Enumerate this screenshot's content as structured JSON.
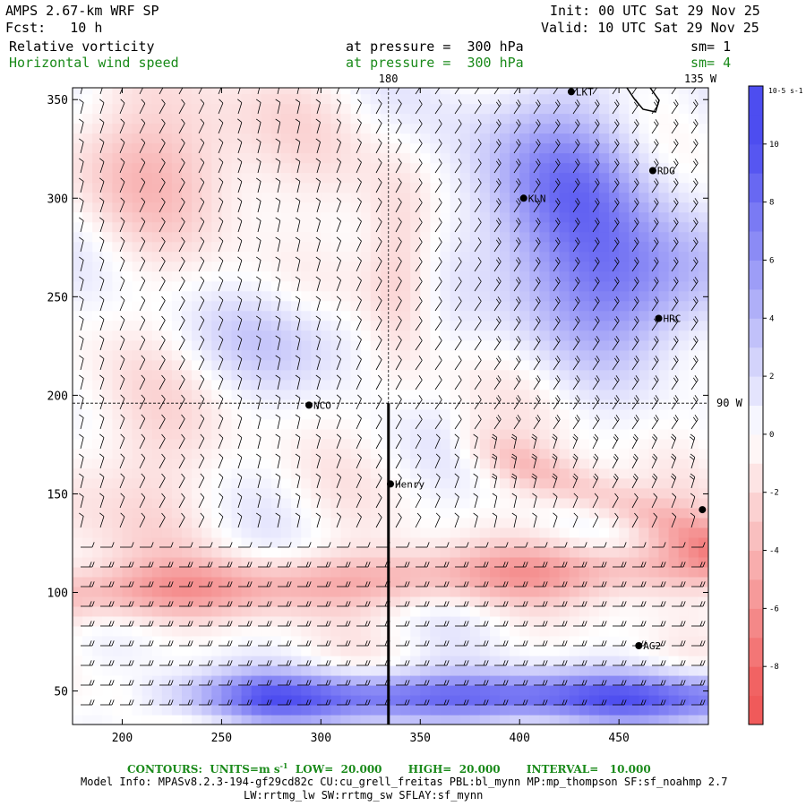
{
  "header": {
    "model": "AMPS 2.67-km WRF SP",
    "fcst": "Fcst:   10 h",
    "init": "Init: 00 UTC Sat 29 Nov 25",
    "valid": "Valid: 10 UTC Sat 29 Nov 25",
    "field1": "Relative vorticity",
    "field2": "Horizontal wind speed",
    "pres1": "at pressure =  300 hPa",
    "pres2": "at pressure =  300 hPa",
    "sm1": "sm= 1",
    "sm2": "sm= 4"
  },
  "chart_data": {
    "type": "heatmap",
    "title": "Relative vorticity / Horizontal wind speed at 300 hPa",
    "xlim": [
      175,
      495
    ],
    "ylim": [
      33,
      356
    ],
    "xticks": [
      200,
      250,
      300,
      350,
      400,
      450
    ],
    "yticks": [
      50,
      100,
      150,
      200,
      250,
      300,
      350
    ],
    "colorbar": {
      "unit": "10-5 s-1",
      "min": -10,
      "max": 12,
      "ticks": [
        10,
        8,
        6,
        4,
        2,
        0,
        -2,
        -4,
        -6,
        -8
      ],
      "positive_color": "#4d4df0",
      "negative_color": "#f05a5a"
    },
    "lines": {
      "meridian_180_x": 334,
      "lat_90_y": 196,
      "label_180": "180",
      "label_135w": "135 W",
      "label_90w": "90 W"
    },
    "stations": [
      {
        "name": "NCO",
        "x": 294,
        "y": 195
      },
      {
        "name": "Henry",
        "x": 335,
        "y": 155
      },
      {
        "name": "KLN",
        "x": 402,
        "y": 300
      },
      {
        "name": "RDG",
        "x": 467,
        "y": 314
      },
      {
        "name": "HRC",
        "x": 470,
        "y": 239
      },
      {
        "name": "AG2",
        "x": 460,
        "y": 73
      },
      {
        "name": "LKT",
        "x": 426,
        "y": 354
      },
      {
        "name": "",
        "x": 492,
        "y": 142
      }
    ]
  },
  "footer": {
    "contours": "CONTOURS:  UNITS=m s",
    "contours_tail": "  LOW=  20.000       HIGH=  20.000       INTERVAL=   10.000",
    "model_info": "Model Info: MPASv8.2.3-194-gf29cd82c CU:cu_grell_freitas PBL:bl_mynn MP:mp_thompson SF:sf_noahmp 2.7",
    "model_info2": "LW:rrtmg_lw SW:rrtmg_sw SFLAY:sf_mynn"
  }
}
